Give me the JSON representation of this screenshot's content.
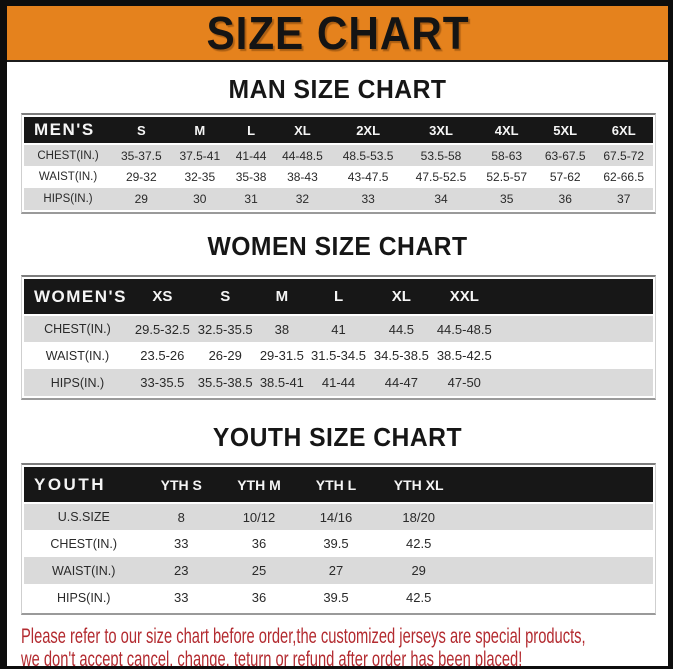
{
  "banner": {
    "title": "SIZE CHART",
    "bg_color": "#E5821D",
    "frame_color": "#0d0d0d"
  },
  "sections": [
    {
      "heading": "MAN SIZE CHART",
      "table": {
        "header": [
          "MEN'S",
          "S",
          "M",
          "L",
          "XL",
          "2XL",
          "3XL",
          "4XL",
          "5XL",
          "6XL"
        ],
        "rows": [
          [
            "CHEST(IN.)",
            "35-37.5",
            "37.5-41",
            "41-44",
            "44-48.5",
            "48.5-53.5",
            "53.5-58",
            "58-63",
            "63-67.5",
            "67.5-72"
          ],
          [
            "WAIST(IN.)",
            "29-32",
            "32-35",
            "35-38",
            "38-43",
            "43-47.5",
            "47.5-52.5",
            "52.5-57",
            "57-62",
            "62-66.5"
          ],
          [
            "HIPS(IN.)",
            "29",
            "30",
            "31",
            "32",
            "33",
            "34",
            "35",
            "36",
            "37"
          ]
        ]
      }
    },
    {
      "heading": "WOMEN SIZE CHART",
      "table": {
        "header": [
          "WOMEN'S",
          "XS",
          "S",
          "M",
          "L",
          "XL",
          "XXL",
          ""
        ],
        "rows": [
          [
            "CHEST(IN.)",
            "29.5-32.5",
            "32.5-35.5",
            "38",
            "41",
            "44.5",
            "44.5-48.5",
            ""
          ],
          [
            "WAIST(IN.)",
            "23.5-26",
            "26-29",
            "29-31.5",
            "31.5-34.5",
            "34.5-38.5",
            "38.5-42.5",
            ""
          ],
          [
            "HIPS(IN.)",
            "33-35.5",
            "35.5-38.5",
            "38.5-41",
            "41-44",
            "44-47",
            "47-50",
            ""
          ]
        ]
      }
    },
    {
      "heading": "YOUTH SIZE CHART",
      "table": {
        "header": [
          "YOUTH",
          "YTH S",
          "YTH M",
          "YTH L",
          "YTH XL",
          ""
        ],
        "rows": [
          [
            "U.S.SIZE",
            "8",
            "10/12",
            "14/16",
            "18/20",
            ""
          ],
          [
            "CHEST(IN.)",
            "33",
            "36",
            "39.5",
            "42.5",
            ""
          ],
          [
            "WAIST(IN.)",
            "23",
            "25",
            "27",
            "29",
            ""
          ],
          [
            "HIPS(IN.)",
            "33",
            "36",
            "39.5",
            "42.5",
            ""
          ]
        ]
      }
    }
  ],
  "footer": {
    "line1": "Please refer to our size chart before order,the customized jerseys are special products,",
    "line2": "we don't accept cancel, change, teturn or refund after order has been placed!",
    "text_color": "#B32B30"
  }
}
